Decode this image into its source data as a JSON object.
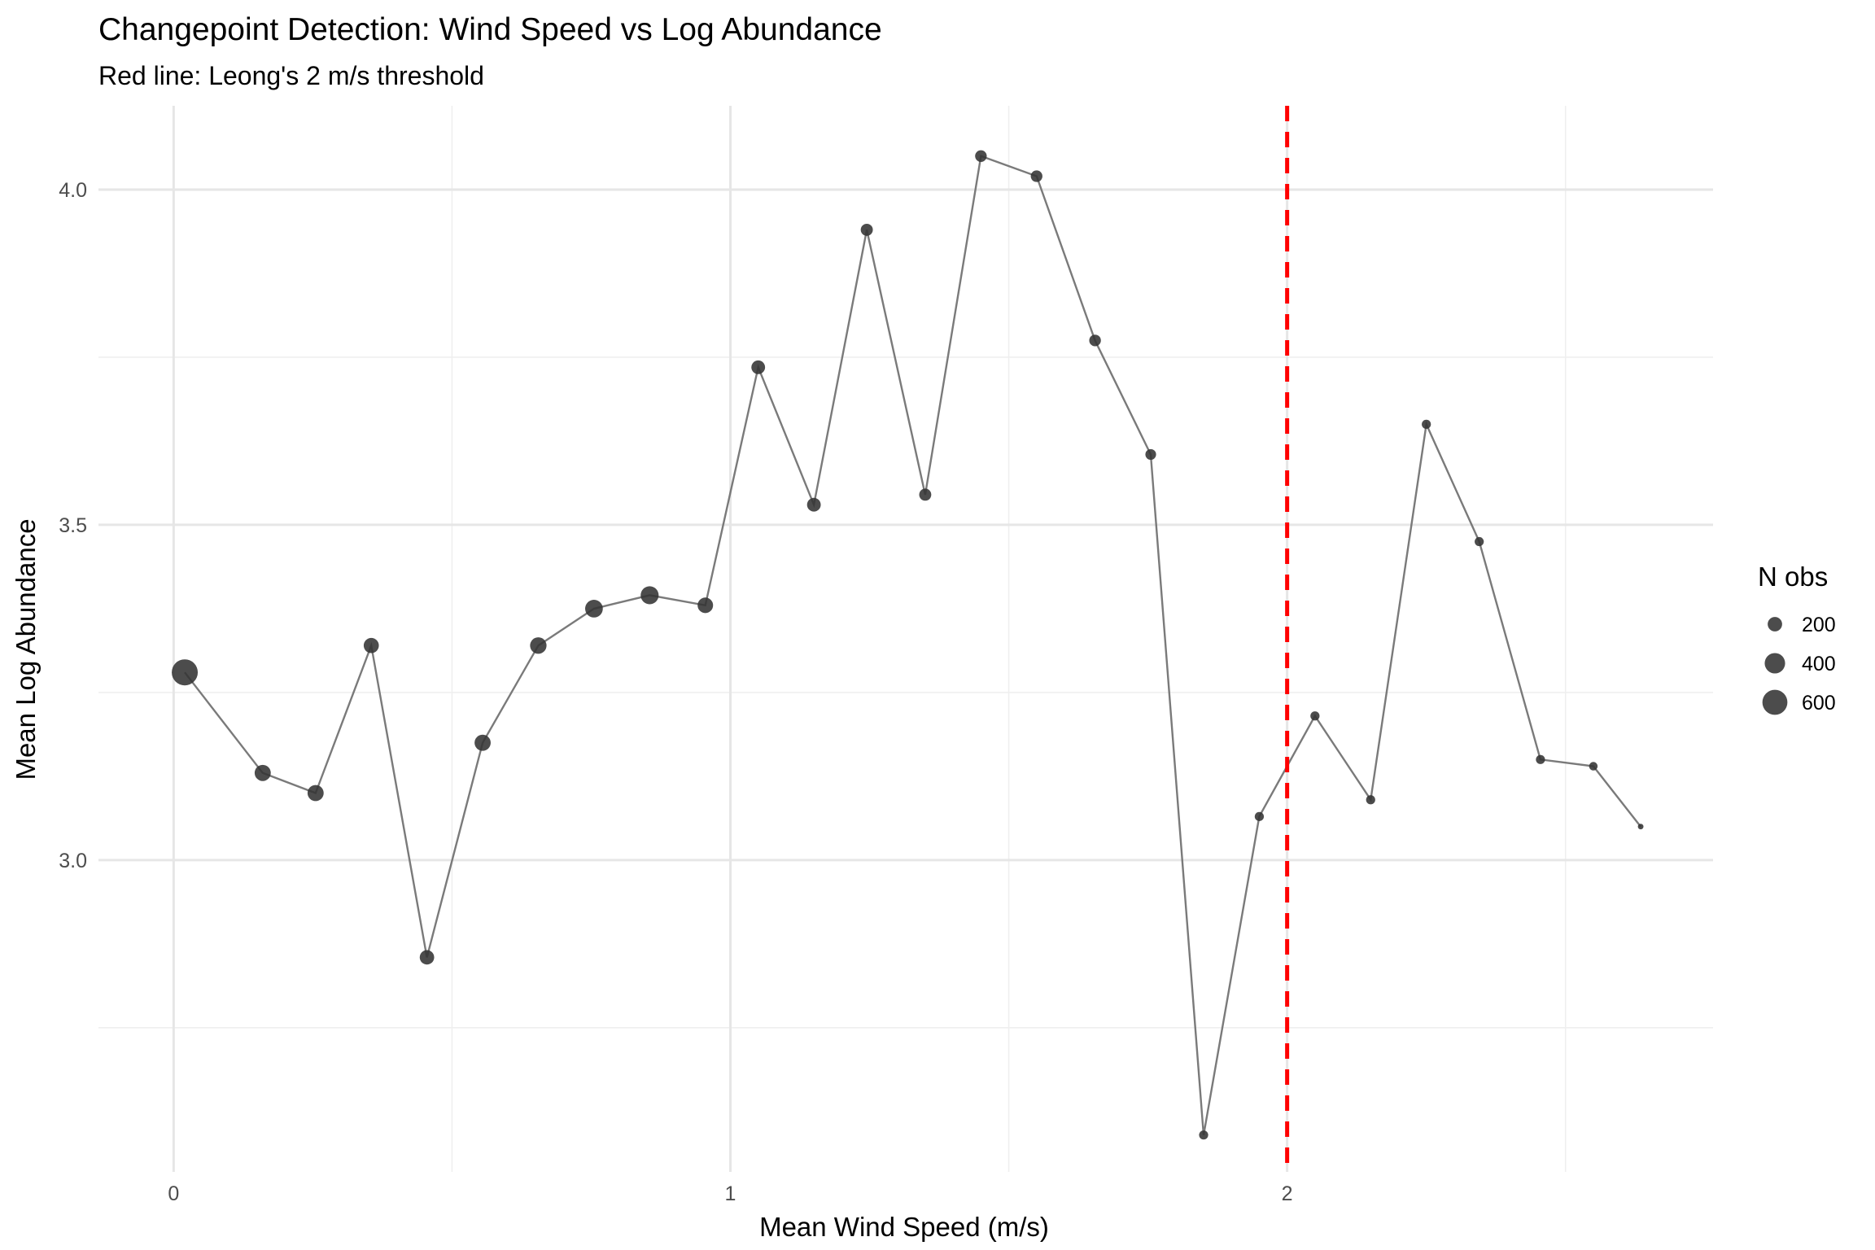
{
  "chart_data": {
    "type": "scatter",
    "title": "Changepoint Detection: Wind Speed vs Log Abundance",
    "subtitle": "Red line: Leong's 2 m/s threshold",
    "xlabel": "Mean Wind Speed (m/s)",
    "ylabel": "Mean Log Abundance",
    "xlim": [
      -0.135,
      2.765
    ],
    "ylim": [
      2.535,
      4.125
    ],
    "x_ticks": [
      0,
      1,
      2
    ],
    "x_tick_labels": [
      "0",
      "1",
      "2"
    ],
    "y_ticks": [
      3.0,
      3.5,
      4.0
    ],
    "y_tick_labels": [
      "3.0",
      "3.5",
      "4.0"
    ],
    "grid": true,
    "threshold": {
      "x": 2,
      "color": "#ff0000",
      "style": "dashed"
    },
    "series": [
      {
        "style": "line+points",
        "line_color": "#7a7a7a",
        "point_color": "#333333",
        "points": [
          {
            "x": 0.02,
            "y": 3.28,
            "n": 650
          },
          {
            "x": 0.16,
            "y": 3.13,
            "n": 250
          },
          {
            "x": 0.255,
            "y": 3.1,
            "n": 250
          },
          {
            "x": 0.355,
            "y": 3.32,
            "n": 220
          },
          {
            "x": 0.455,
            "y": 2.855,
            "n": 200
          },
          {
            "x": 0.555,
            "y": 3.175,
            "n": 250
          },
          {
            "x": 0.655,
            "y": 3.32,
            "n": 260
          },
          {
            "x": 0.755,
            "y": 3.375,
            "n": 300
          },
          {
            "x": 0.855,
            "y": 3.395,
            "n": 310
          },
          {
            "x": 0.955,
            "y": 3.38,
            "n": 230
          },
          {
            "x": 1.05,
            "y": 3.735,
            "n": 180
          },
          {
            "x": 1.15,
            "y": 3.53,
            "n": 180
          },
          {
            "x": 1.245,
            "y": 3.94,
            "n": 140
          },
          {
            "x": 1.35,
            "y": 3.545,
            "n": 140
          },
          {
            "x": 1.45,
            "y": 4.05,
            "n": 130
          },
          {
            "x": 1.55,
            "y": 4.02,
            "n": 130
          },
          {
            "x": 1.655,
            "y": 3.775,
            "n": 130
          },
          {
            "x": 1.755,
            "y": 3.605,
            "n": 110
          },
          {
            "x": 1.85,
            "y": 2.59,
            "n": 80
          },
          {
            "x": 1.95,
            "y": 3.065,
            "n": 80
          },
          {
            "x": 2.05,
            "y": 3.215,
            "n": 80
          },
          {
            "x": 2.15,
            "y": 3.09,
            "n": 80
          },
          {
            "x": 2.25,
            "y": 3.65,
            "n": 80
          },
          {
            "x": 2.345,
            "y": 3.475,
            "n": 80
          },
          {
            "x": 2.455,
            "y": 3.15,
            "n": 80
          },
          {
            "x": 2.55,
            "y": 3.14,
            "n": 70
          },
          {
            "x": 2.635,
            "y": 3.05,
            "n": 30
          }
        ]
      }
    ],
    "legend": {
      "title": "N obs",
      "position": "right",
      "entries": [
        {
          "label": "200",
          "n": 200
        },
        {
          "label": "400",
          "n": 400
        },
        {
          "label": "600",
          "n": 600
        }
      ]
    }
  }
}
